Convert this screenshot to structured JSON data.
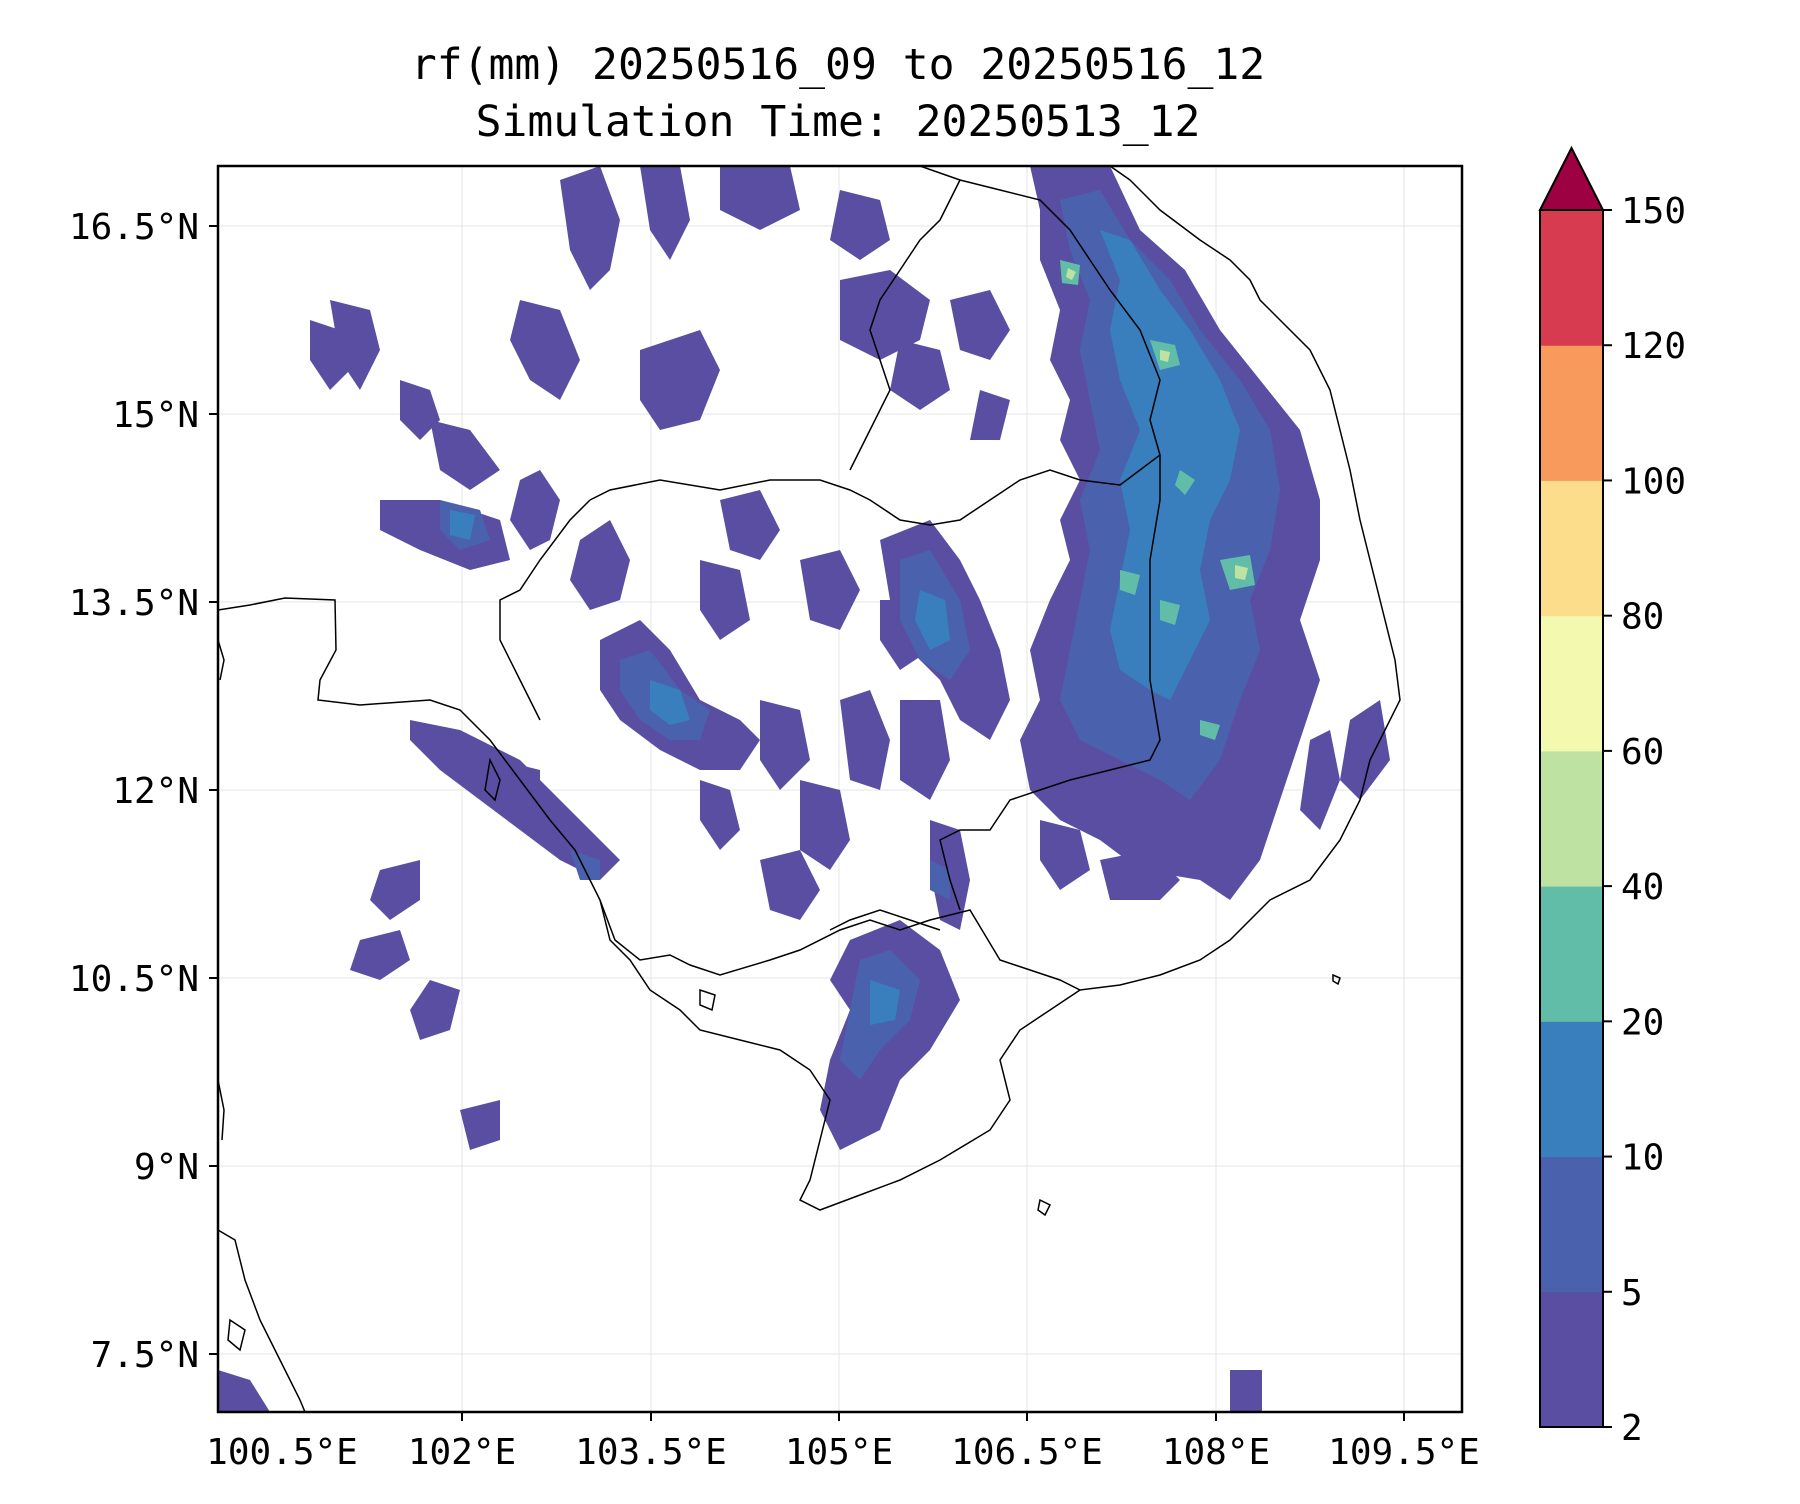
{
  "title": {
    "line1": "rf(mm) 20250516_09 to 20250516_12",
    "line2": "Simulation Time: 20250513_12"
  },
  "map": {
    "variable": "rf(mm)",
    "x_ticks": [
      "100.5°E",
      "102°E",
      "103.5°E",
      "105°E",
      "106.5°E",
      "108°E",
      "109.5°E"
    ],
    "y_ticks": [
      "16.5°N",
      "15°N",
      "13.5°N",
      "12°N",
      "10.5°N",
      "9°N",
      "7.5°N"
    ]
  },
  "colorbar": {
    "levels": [
      "2",
      "5",
      "10",
      "20",
      "40",
      "60",
      "80",
      "100",
      "120",
      "150"
    ],
    "colors": [
      "#5a4ea3",
      "#4a62ad",
      "#3a7fbd",
      "#62bda8",
      "#bde2a2",
      "#f3f9ae",
      "#fbdd8c",
      "#f89a5c",
      "#d63b4f",
      "#9e0142"
    ],
    "extend": "max"
  }
}
